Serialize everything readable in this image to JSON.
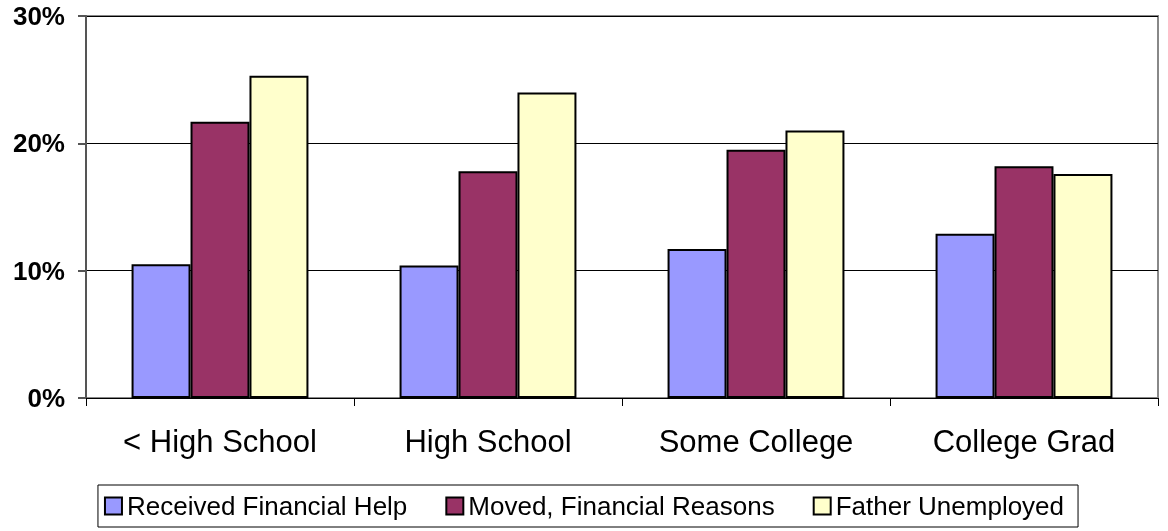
{
  "chart_data": {
    "type": "bar",
    "categories": [
      "< High School",
      "High School",
      "Some College",
      "College Grad"
    ],
    "series": [
      {
        "name": "Received Financial Help",
        "color": "#9999ff",
        "values": [
          10.5,
          10.4,
          11.7,
          12.9
        ]
      },
      {
        "name": "Moved, Financial Reasons",
        "color": "#993366",
        "values": [
          21.7,
          17.8,
          19.5,
          18.2
        ]
      },
      {
        "name": "Father Unemployed",
        "color": "#ffffcc",
        "values": [
          25.3,
          24.0,
          21.0,
          17.6
        ]
      }
    ],
    "ylim": [
      0,
      30
    ],
    "yticks": [
      {
        "value": 0,
        "label": "0%"
      },
      {
        "value": 10,
        "label": "10%"
      },
      {
        "value": 20,
        "label": "20%"
      },
      {
        "value": 30,
        "label": "30%"
      }
    ],
    "grid": "y",
    "legend": "bottom"
  }
}
